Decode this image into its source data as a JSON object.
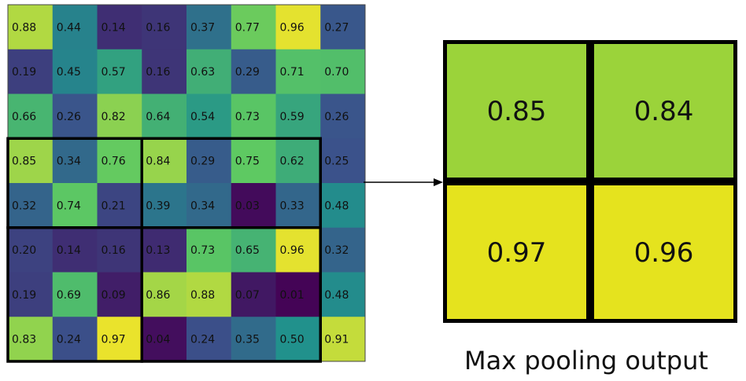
{
  "input_grid": {
    "values": [
      [
        "0.88",
        "0.44",
        "0.14",
        "0.16",
        "0.37",
        "0.77",
        "0.96",
        "0.27"
      ],
      [
        "0.19",
        "0.45",
        "0.57",
        "0.16",
        "0.63",
        "0.29",
        "0.71",
        "0.70"
      ],
      [
        "0.66",
        "0.26",
        "0.82",
        "0.64",
        "0.54",
        "0.73",
        "0.59",
        "0.26"
      ],
      [
        "0.85",
        "0.34",
        "0.76",
        "0.84",
        "0.29",
        "0.75",
        "0.62",
        "0.25"
      ],
      [
        "0.32",
        "0.74",
        "0.21",
        "0.39",
        "0.34",
        "0.03",
        "0.33",
        "0.48"
      ],
      [
        "0.20",
        "0.14",
        "0.16",
        "0.13",
        "0.73",
        "0.65",
        "0.96",
        "0.32"
      ],
      [
        "0.19",
        "0.69",
        "0.09",
        "0.86",
        "0.88",
        "0.07",
        "0.01",
        "0.48"
      ],
      [
        "0.83",
        "0.24",
        "0.97",
        "0.04",
        "0.24",
        "0.35",
        "0.50",
        "0.91"
      ]
    ],
    "colormap": [
      "#440154",
      "#3b528b",
      "#21918c",
      "#5ec962",
      "#fde725"
    ],
    "pooling_windows": [
      {
        "rows": [
          3,
          4
        ],
        "cols": [
          0,
          2
        ]
      },
      {
        "rows": [
          3,
          4
        ],
        "cols": [
          3,
          6
        ]
      },
      {
        "rows": [
          5,
          7
        ],
        "cols": [
          0,
          2
        ]
      },
      {
        "rows": [
          5,
          7
        ],
        "cols": [
          3,
          6
        ]
      }
    ]
  },
  "output_grid": {
    "values": [
      [
        "0.85",
        "0.84"
      ],
      [
        "0.97",
        "0.96"
      ]
    ],
    "colors": [
      [
        "#9bd33a",
        "#9bd33a"
      ],
      [
        "#e5e31e",
        "#e5e31e"
      ]
    ]
  },
  "caption": "Max pooling output"
}
